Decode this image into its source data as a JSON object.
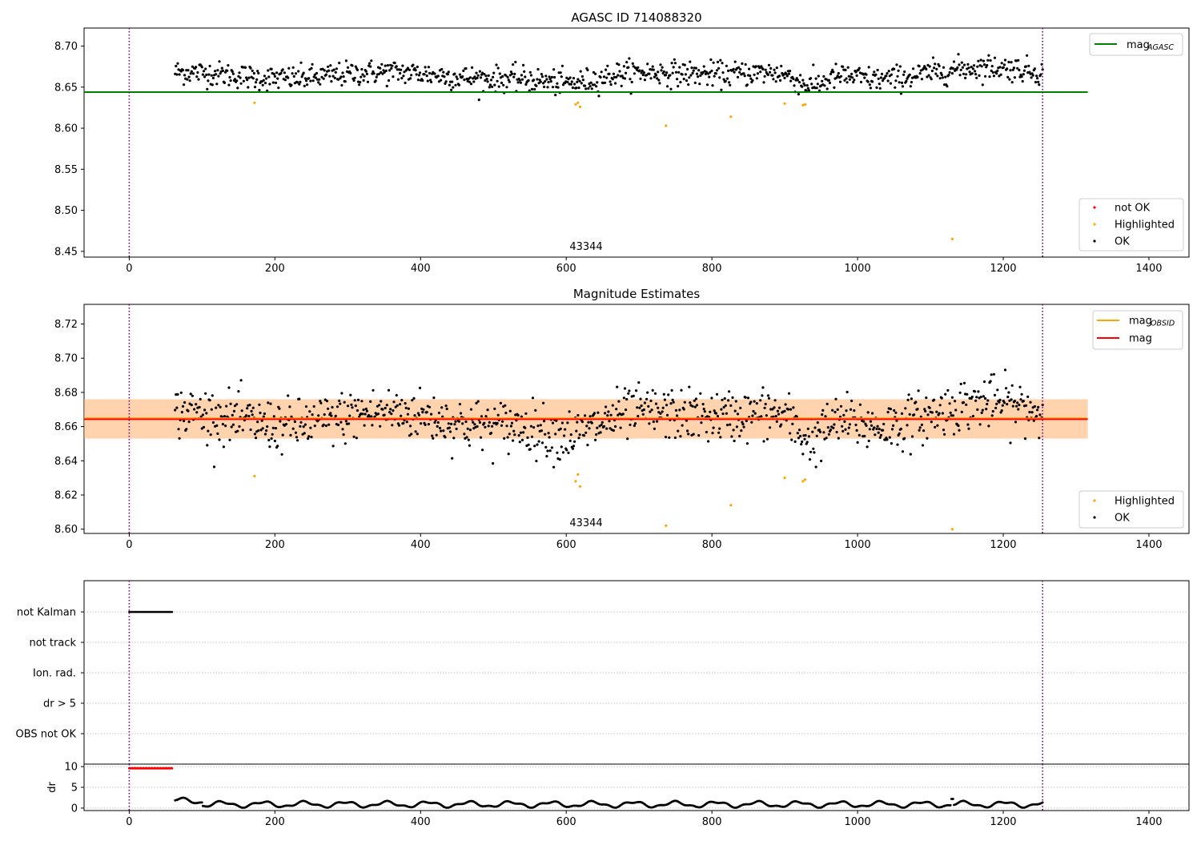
{
  "chart_data": [
    {
      "type": "scatter",
      "title": "AGASC ID 714088320",
      "xlabel": "",
      "ylabel": "",
      "xlim": [
        -62,
        1455
      ],
      "ylim": [
        8.443,
        8.722
      ],
      "xticks": [
        0,
        200,
        400,
        600,
        800,
        1000,
        1200,
        1400
      ],
      "yticks": [
        8.45,
        8.5,
        8.55,
        8.6,
        8.65,
        8.7
      ],
      "ytick_labels": [
        "8.45",
        "8.50",
        "8.55",
        "8.60",
        "8.65",
        "8.70"
      ],
      "annotation": "43344",
      "annotation_x": 627,
      "vlines": [
        0,
        1254
      ],
      "vline_color": "#800080",
      "hline": {
        "y": 8.644,
        "x_end": 1316,
        "color": "#008000"
      },
      "line_legend": [
        {
          "label": "mag",
          "sub": "AGASC",
          "color": "#008000"
        }
      ],
      "point_legend": [
        {
          "label": "not OK",
          "color": "#ff0000"
        },
        {
          "label": "Highlighted",
          "color": "#ffa500"
        },
        {
          "label": "OK",
          "color": "#000000"
        }
      ],
      "ok_points": {
        "x_start": 63,
        "x_end": 1254,
        "count": 1000,
        "baseline": 8.6645,
        "color": "#000000"
      },
      "highlighted_points": {
        "x": [
          172,
          613,
          616,
          619,
          737,
          826,
          900,
          925,
          928,
          1130
        ],
        "y": [
          8.631,
          8.629,
          8.631,
          8.626,
          8.603,
          8.614,
          8.63,
          8.628,
          8.629,
          8.465
        ],
        "color": "#ffa500"
      },
      "grid": false,
      "legend_placement": "top-right / bottom-right"
    },
    {
      "type": "scatter",
      "title": "Magnitude Estimates",
      "xlabel": "",
      "ylabel": "",
      "xlim": [
        -62,
        1455
      ],
      "ylim": [
        8.5975,
        8.7315
      ],
      "xticks": [
        0,
        200,
        400,
        600,
        800,
        1000,
        1200,
        1400
      ],
      "yticks": [
        8.6,
        8.62,
        8.64,
        8.66,
        8.68,
        8.7,
        8.72
      ],
      "ytick_labels": [
        "8.60",
        "8.62",
        "8.64",
        "8.66",
        "8.68",
        "8.70",
        "8.72"
      ],
      "annotation": "43344",
      "annotation_x": 627,
      "vlines": [
        0,
        1254
      ],
      "vline_color": "#800080",
      "bands": [
        {
          "y0": 8.653,
          "y1": 8.676,
          "color": "#ffc0cb",
          "opacity": 0.45
        },
        {
          "y0": 8.653,
          "y1": 8.676,
          "color": "#ffa500",
          "opacity": 0.25
        }
      ],
      "hlines": [
        {
          "y": 8.6648,
          "color": "#ffa500",
          "width": 2.2
        },
        {
          "y": 8.6643,
          "color": "#ff0000",
          "width": 1.8
        }
      ],
      "band_x_end": 1316,
      "line_legend": [
        {
          "label": "mag",
          "sub": "OBSID",
          "color": "#ffa500"
        },
        {
          "label": "mag",
          "sub": "",
          "color": "#ff0000"
        }
      ],
      "point_legend": [
        {
          "label": "Highlighted",
          "color": "#ffa500"
        },
        {
          "label": "OK",
          "color": "#000000"
        }
      ],
      "ok_points": {
        "x_start": 63,
        "x_end": 1254,
        "count": 1000,
        "baseline": 8.6645,
        "color": "#000000"
      },
      "highlighted_points": {
        "x": [
          172,
          613,
          616,
          619,
          737,
          826,
          900,
          925,
          928,
          1130
        ],
        "y": [
          8.631,
          8.628,
          8.632,
          8.625,
          8.602,
          8.614,
          8.63,
          8.628,
          8.629,
          8.6
        ],
        "color": "#ffa500"
      },
      "grid": false,
      "legend_placement": "top-right / bottom-right"
    },
    {
      "type": "scatter",
      "title": "",
      "xlabel": "",
      "ylabel": "",
      "xlim": [
        -62,
        1455
      ],
      "flag_rows": [
        "not Kalman",
        "not track",
        "Ion. rad.",
        "dr > 5",
        "OBS not OK"
      ],
      "flag_segments": [
        {
          "row": "not Kalman",
          "x_start": 0,
          "x_end": 60,
          "color": "#000000"
        }
      ],
      "vlines": [
        0,
        1254
      ],
      "vline_color": "#800080",
      "grid": "dotted rows"
    },
    {
      "type": "scatter",
      "title": "",
      "xlabel": "",
      "ylabel": "dr",
      "xlim": [
        -62,
        1455
      ],
      "ylim": [
        -0.6,
        10.6
      ],
      "xticks": [
        0,
        200,
        400,
        600,
        800,
        1000,
        1200,
        1400
      ],
      "yticks": [
        0,
        5,
        10
      ],
      "ytick_labels": [
        "0",
        "5",
        "10"
      ],
      "vlines": [
        0,
        1254
      ],
      "vline_color": "#800080",
      "clipped_points": {
        "x_start": 0,
        "x_end": 60,
        "y": 9.6,
        "color": "#ff0000"
      },
      "dr_points": {
        "x_start": 63,
        "x_end": 1254,
        "count": 1000,
        "mean": 0.9,
        "color": "#000000"
      },
      "grid": "dotted"
    }
  ]
}
